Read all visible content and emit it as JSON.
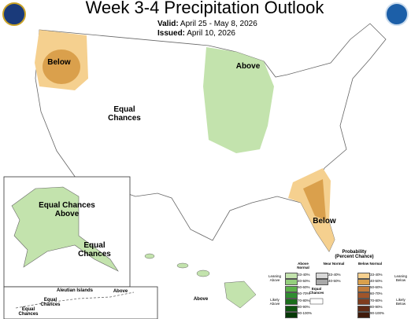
{
  "header": {
    "title": "Week 3-4 Precipitation Outlook",
    "valid_label": "Valid:",
    "valid": "April 25 - May 8, 2026",
    "issued_label": "Issued:",
    "issued": "April 10, 2026"
  },
  "map_labels": [
    "Below",
    "Above",
    "Equal Chances",
    "Below",
    "Equal Chances Above",
    "Equal Chances",
    "Above",
    "Aleutian Islands",
    "Above",
    "Equal Chances",
    "Equal Chances"
  ],
  "legend": {
    "title": "Probability",
    "subtitle": "(Percent Chance)",
    "above": {
      "heading": "Above Normal",
      "rows": [
        {
          "label": "33-40%",
          "color": "#c3e3ad"
        },
        {
          "label": "40-50%",
          "color": "#94cf7d"
        },
        {
          "label": "50-60%",
          "color": "#5cb14a"
        },
        {
          "label": "60-70%",
          "color": "#2f8d30"
        },
        {
          "label": "70-80%",
          "color": "#1b6e1c"
        },
        {
          "label": "80-90%",
          "color": "#0e530f"
        },
        {
          "label": "90-100%",
          "color": "#063807"
        }
      ]
    },
    "near": {
      "heading": "Near Normal",
      "rows": [
        {
          "label": "33-40%",
          "color": "#d9d9d9"
        },
        {
          "label": "40-50%",
          "color": "#a9a9a9"
        }
      ]
    },
    "equal": "Equal Chances",
    "below": {
      "heading": "Below Normal",
      "rows": [
        {
          "label": "33-40%",
          "color": "#f5d08f"
        },
        {
          "label": "40-50%",
          "color": "#daa04c"
        },
        {
          "label": "50-60%",
          "color": "#c07a3a"
        },
        {
          "label": "60-70%",
          "color": "#a0552a"
        },
        {
          "label": "70-80%",
          "color": "#7f3d1e"
        },
        {
          "label": "80-90%",
          "color": "#5f2a14"
        },
        {
          "label": "90-100%",
          "color": "#3f1a0a"
        }
      ]
    },
    "side_labels": {
      "leaning_above": "Leaning Above",
      "likely_above": "Likely Above",
      "leaning_below": "Leaning Below",
      "likely_below": "Likely Below"
    }
  }
}
